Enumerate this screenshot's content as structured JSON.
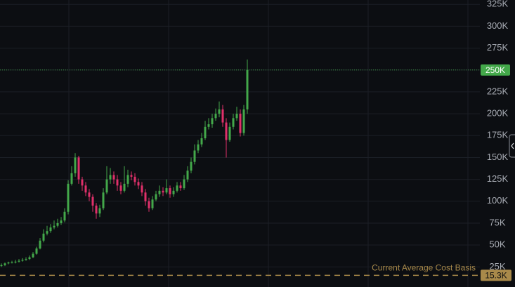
{
  "chart_data": {
    "type": "candlestick",
    "up_color": "#43a84a",
    "down_color": "#e0306a",
    "open": [
      26000,
      27000,
      29000,
      30000,
      30000,
      31000,
      32000,
      33000,
      34000,
      36000,
      40000,
      46000,
      55000,
      63000,
      66000,
      70000,
      72000,
      75000,
      78000,
      88000,
      120000,
      132000,
      150000,
      125000,
      118000,
      110000,
      105000,
      95000,
      86000,
      92000,
      110000,
      125000,
      130000,
      125000,
      118000,
      112000,
      120000,
      130000,
      128000,
      122000,
      118000,
      110000,
      100000,
      92000,
      102000,
      108000,
      112000,
      110000,
      115000,
      108000,
      112000,
      118000,
      115000,
      125000,
      135000,
      145000,
      158000,
      165000,
      172000,
      185000,
      188000,
      195000,
      200000,
      205000,
      190000,
      170000,
      185000,
      195000,
      200000,
      178000,
      205000
    ],
    "high": [
      29000,
      30000,
      31000,
      32000,
      33000,
      34000,
      35000,
      36000,
      38000,
      42000,
      48000,
      58000,
      68000,
      72000,
      74000,
      78000,
      80000,
      82000,
      92000,
      124000,
      140000,
      155000,
      152000,
      128000,
      122000,
      114000,
      108000,
      98000,
      96000,
      115000,
      140000,
      138000,
      134000,
      130000,
      122000,
      140000,
      136000,
      134000,
      132000,
      126000,
      122000,
      114000,
      104000,
      106000,
      112000,
      118000,
      116000,
      125000,
      118000,
      116000,
      122000,
      122000,
      130000,
      140000,
      150000,
      165000,
      170000,
      178000,
      192000,
      195000,
      200000,
      206000,
      214000,
      210000,
      195000,
      190000,
      200000,
      208000,
      205000,
      210000,
      262000
    ],
    "low": [
      25000,
      26000,
      28000,
      29000,
      29000,
      30000,
      31000,
      32000,
      33000,
      35000,
      39000,
      45000,
      53000,
      61000,
      64000,
      68000,
      70000,
      73000,
      76000,
      85000,
      118000,
      128000,
      120000,
      112000,
      106000,
      100000,
      88000,
      80000,
      82000,
      90000,
      108000,
      120000,
      120000,
      112000,
      108000,
      110000,
      116000,
      124000,
      118000,
      114000,
      106000,
      95000,
      88000,
      90000,
      100000,
      105000,
      106000,
      108000,
      104000,
      105000,
      110000,
      112000,
      113000,
      122000,
      132000,
      142000,
      155000,
      162000,
      170000,
      182000,
      184000,
      192000,
      196000,
      185000,
      150000,
      168000,
      182000,
      192000,
      174000,
      175000,
      200000
    ],
    "close": [
      27000,
      29000,
      30000,
      30000,
      31000,
      32000,
      33000,
      34000,
      36000,
      40000,
      46000,
      55000,
      63000,
      66000,
      70000,
      72000,
      75000,
      78000,
      88000,
      120000,
      132000,
      150000,
      125000,
      118000,
      110000,
      105000,
      95000,
      86000,
      92000,
      110000,
      125000,
      130000,
      125000,
      118000,
      112000,
      120000,
      130000,
      128000,
      122000,
      118000,
      110000,
      100000,
      92000,
      102000,
      108000,
      112000,
      110000,
      115000,
      108000,
      112000,
      118000,
      115000,
      125000,
      135000,
      145000,
      158000,
      165000,
      172000,
      185000,
      188000,
      195000,
      200000,
      205000,
      190000,
      170000,
      185000,
      195000,
      200000,
      178000,
      205000,
      250000
    ],
    "ylim": [
      2000,
      330000
    ],
    "yticks": [
      {
        "value": 25000,
        "label": "25K"
      },
      {
        "value": 50000,
        "label": "50K"
      },
      {
        "value": 75000,
        "label": "75K"
      },
      {
        "value": 100000,
        "label": "100K"
      },
      {
        "value": 125000,
        "label": "125K"
      },
      {
        "value": 150000,
        "label": "150K"
      },
      {
        "value": 175000,
        "label": "175K"
      },
      {
        "value": 200000,
        "label": "200K"
      },
      {
        "value": 225000,
        "label": "225K"
      },
      {
        "value": 250000,
        "label": "250K"
      },
      {
        "value": 275000,
        "label": "275K"
      },
      {
        "value": 300000,
        "label": "300K"
      },
      {
        "value": 325000,
        "label": "325K"
      }
    ],
    "price_line": {
      "value": 250000,
      "label": "250K",
      "color": "#43a84a"
    },
    "cost_basis": {
      "text": "Current Average Cost Basis",
      "value": 15300,
      "value_label": "15.3K",
      "color": "#a8894a"
    }
  }
}
